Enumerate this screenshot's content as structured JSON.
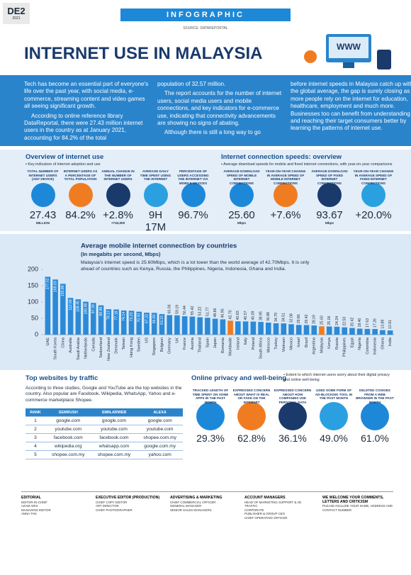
{
  "header": {
    "section": "DE2",
    "date": "2021",
    "banner": "INFOGRAPHIC",
    "source": "SOURCE: DATAREPORTAL",
    "title": "INTERNET USE IN MALAYSIA",
    "illustration_text": "WWW"
  },
  "intro": [
    [
      "Tech has become an essential part of everyone's life over the past year, with social media, e-commerce, streaming content and video games all seeing significant growth.",
      "According to online reference library DataReportal, there were 27.43 million internet users in the country as at January 2021, accounting for 84.2% of the total"
    ],
    [
      "population of 32.57 million.",
      "The report accounts for the number of internet users, social media users and mobile connections, and key indicators for e-commerce use, indicating that connectivity advancements are showing no signs of abating.",
      "Although there is still a long way to go"
    ],
    [
      "before internet speeds in Malaysia catch up with the global average, the gap is surely closing as more people rely on the internet for education, healthcare, employment and much more. Businesses too can benefit from understanding and reaching their target consumers better by learning the patterns of internet use."
    ]
  ],
  "overview": {
    "title": "Overview of internet use",
    "subtitle": "• Key indicators of internet adoption and use",
    "items": [
      {
        "caption": "Total number of internet users (any device)",
        "value": "27.43",
        "unit": "MILLION"
      },
      {
        "caption": "Internet users as a percentage of total population",
        "value": "84.2%"
      },
      {
        "caption": "Annual change in the number of internet users",
        "value": "+2.8%",
        "unit": "+734,000"
      },
      {
        "caption": "Average daily time spent using the internet",
        "value": "9H 17M"
      },
      {
        "caption": "Percentage of users accessing the internet via mobile devices",
        "value": "96.7%"
      }
    ]
  },
  "speeds": {
    "title": "Internet connection speeds: overview",
    "subtitle": "• Average download speeds for mobile and fixed internet connections, with year-on-year comparisons",
    "items": [
      {
        "caption": "Average download speed of mobile internet connections",
        "value": "25.60",
        "unit": "Mbps"
      },
      {
        "caption": "Year-on-year change in average speed of mobile internet connections",
        "value": "+7.6%"
      },
      {
        "caption": "Average download speed of fixed internet connections",
        "value": "93.67",
        "unit": "Mbps"
      },
      {
        "caption": "Year-on-year change in average speed of fixed internet connections",
        "value": "+20.0%"
      }
    ]
  },
  "chart_data": {
    "type": "bar",
    "title": "Average mobile internet connection by countries",
    "subtitle": "(In megabits per second, Mbps)",
    "annotation": "Malaysia's internet speed is 25.60Mbps, which is a lot lower than the world average of 42.70Mbps. It is only ahead of countries such as Kenya, Russia, the Philippines, Nigeria, Indonesia, Ghana and India.",
    "categories": [
      "UAE",
      "South Korea",
      "China",
      "Australia",
      "Saudi Arabia",
      "Netherlands",
      "Canada",
      "Switzerland",
      "New Zealand",
      "Denmark",
      "Taiwan",
      "Hong Kong",
      "Sweden",
      "US",
      "Singapore",
      "Belgium",
      "Germany",
      "UK",
      "France",
      "Austria",
      "Thailand",
      "Spain",
      "Japan",
      "Romania",
      "Worldwide",
      "Ireland",
      "Italy",
      "Poland",
      "South Africa",
      "Morocco",
      "Turkey",
      "Vietnam",
      "Mexico",
      "Israel",
      "Brazil",
      "Argentina",
      "Malaysia",
      "Kenya",
      "Russia",
      "Philippines",
      "Egypt",
      "Nigeria",
      "Colombia",
      "Indonesia",
      "Ghana",
      "India"
    ],
    "values": [
      177.52,
      169.03,
      155.89,
      112.68,
      108.45,
      100.98,
      97.39,
      89.89,
      78.13,
      77.18,
      74.14,
      73.23,
      70.43,
      67.33,
      66.82,
      63.15,
      60.06,
      59.19,
      56.44,
      55.42,
      53.22,
      51.77,
      48.86,
      46.96,
      42.7,
      40.83,
      40.57,
      40.09,
      38.95,
      36.88,
      34.79,
      34.51,
      32.08,
      29.86,
      29.42,
      28.19,
      25.6,
      25.06,
      24.24,
      22.5,
      20.42,
      18.4,
      17.63,
      17.26,
      13.89,
      12.91
    ],
    "value_labels": [
      "177.52",
      "169.03",
      "155.89",
      "112.68",
      "108.45",
      "100.98",
      "97.39",
      "89.89",
      "78.13",
      "77.18",
      "74.14",
      "73.23",
      "70.43",
      "67.33",
      "66.82",
      "63.15",
      "60.06",
      "59.19",
      "56.44",
      "55.42",
      "53.22",
      "51.77",
      "48.86",
      "46.96",
      "42.70",
      "40.83",
      "40.57",
      "40.09",
      "38.95",
      "36.88",
      "34.79",
      "34.51",
      "32.08",
      "29.86",
      "29.42",
      "28.19",
      "25.60",
      "25.06",
      "24.24",
      "22.50",
      "20.42",
      "18.40",
      "17.63",
      "17.26",
      "13.89",
      "12.91"
    ],
    "colors": [
      "#2b8ad8",
      "#2b8ad8",
      "#2b8ad8",
      "#2b8ad8",
      "#2b8ad8",
      "#2b8ad8",
      "#2b8ad8",
      "#2b8ad8",
      "#2b8ad8",
      "#2b8ad8",
      "#2b8ad8",
      "#2b8ad8",
      "#2b8ad8",
      "#2b8ad8",
      "#2b8ad8",
      "#2b8ad8",
      "#2b8ad8",
      "#2b8ad8",
      "#2b8ad8",
      "#2b8ad8",
      "#2b8ad8",
      "#2b8ad8",
      "#2b8ad8",
      "#2b8ad8",
      "#f07c22",
      "#2b8ad8",
      "#2b8ad8",
      "#2b8ad8",
      "#2b8ad8",
      "#2b8ad8",
      "#2b8ad8",
      "#2b8ad8",
      "#2b8ad8",
      "#2b8ad8",
      "#2b8ad8",
      "#2b8ad8",
      "#f07c22",
      "#2b8ad8",
      "#2b8ad8",
      "#2b8ad8",
      "#2b8ad8",
      "#2b8ad8",
      "#2b8ad8",
      "#2b8ad8",
      "#2b8ad8",
      "#2b8ad8"
    ],
    "ylim": [
      0,
      200
    ],
    "yticks": [
      0,
      50,
      100,
      150,
      200
    ],
    "grid": false
  },
  "top_websites": {
    "title": "Top websites by traffic",
    "intro": "According to three studies, Google and YouTube are the top websites in the country. Also popular are Facebook, Wikipedia, WhatsApp, Yahoo and e-commerce marketplace Shopee.",
    "table": {
      "header": [
        "RANK",
        "SEMRUSH",
        "SIMILARWEB",
        "ALEXA"
      ],
      "rows": [
        [
          "1",
          "google.com",
          "google.com",
          "google.com"
        ],
        [
          "2",
          "youtube.com",
          "youtube.com",
          "youtube.com"
        ],
        [
          "3",
          "facebook.com",
          "facebook.com",
          "shopee.com.my"
        ],
        [
          "4",
          "wikipedia.org",
          "whatsapp.com",
          "google.com.my"
        ],
        [
          "5",
          "shopee.com.my",
          "shopee.com.my",
          "yahoo.com"
        ]
      ]
    }
  },
  "privacy": {
    "title": "Online privacy and well-being",
    "subtitle": "• Extent to which internet users worry about their digital privacy and online well-being",
    "items": [
      {
        "caption": "Tracked length of time spent on some apps in the past month",
        "value": "29.3%"
      },
      {
        "caption": "Expressed concern about what is real or fake on the internet",
        "value": "62.8%"
      },
      {
        "caption": "Expressed concern about how companies use personal data",
        "value": "36.1%"
      },
      {
        "caption": "Used some form of ad-blocking tool in the past month",
        "value": "49.0%"
      },
      {
        "caption": "Deleted cookies from a web browser in the past month",
        "value": "61.0%"
      }
    ]
  },
  "footer": {
    "columns": [
      [
        "EDITORIAL",
        "EDITOR-IN-CHIEF",
        "AZAM ARIS",
        "MANAGING EDITOR",
        "ANNA TAN"
      ],
      [
        "EXECUTIVE EDITOR (PRODUCTION)",
        "CHIEF COPY EDITOR",
        "ART DIRECTOR",
        "CHIEF PHOTOGRAPHER"
      ],
      [
        "ADVERTISING & MARKETING",
        "CHIEF COMMERCIAL OFFICER",
        "GENERAL MANAGER",
        "SENIOR SALES MANAGERS"
      ],
      [
        "ACCOUNT MANAGERS",
        "HEAD OF MARKETING SUPPORT & AD TRAFFIC",
        "CORPORATE",
        "PUBLISHER & GROUP CEO",
        "CHIEF OPERATING OFFICER"
      ],
      [
        "WE WELCOME YOUR COMMENTS, LETTERS AND CRITICISM",
        "PLEASE INCLUDE YOUR NAME, ADDRESS AND CONTACT NUMBER"
      ]
    ]
  }
}
